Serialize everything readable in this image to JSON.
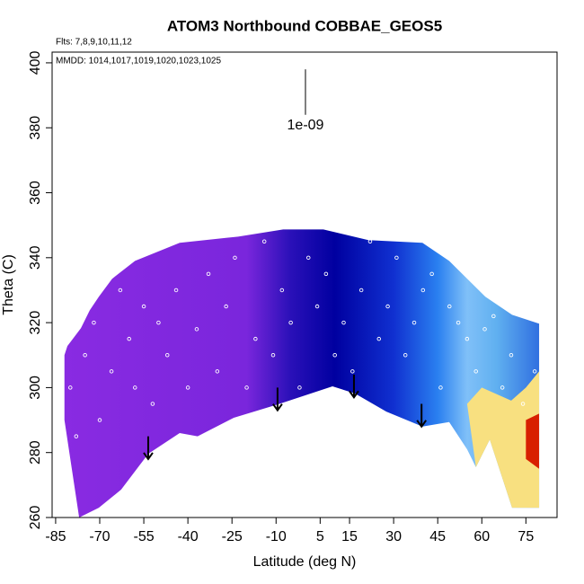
{
  "chart_data": {
    "type": "field",
    "title": "ATOM3 Northbound COBBAE_GEOS5",
    "subtitle": "Flts: 7,8,9,10,11,12",
    "annotation": "MMDD: 1014,1017,1019,1020,1023,1025",
    "x_label": "Latitude (deg N)",
    "y_label": "Theta (C)",
    "xlim": [
      -86.2,
      85.6
    ],
    "ylim": [
      260,
      403.3
    ],
    "xticks": [
      -85,
      -70,
      -55,
      -40,
      -25,
      -10,
      5,
      15,
      30,
      45,
      60,
      75
    ],
    "yticks": [
      260,
      280,
      300,
      320,
      340,
      360,
      380,
      400
    ],
    "field": {
      "top": {
        "lat": [
          -82,
          -81,
          -76.4,
          -73.4,
          -70.3,
          -65.8,
          -58,
          -42.8,
          -22.9,
          -7.6,
          6.1,
          21.4,
          39.8,
          48.9,
          61.2,
          70.3,
          79.5
        ],
        "theta": [
          310,
          312.8,
          318.3,
          323.8,
          328,
          333.5,
          339,
          344.6,
          346.5,
          348.7,
          348.7,
          345.4,
          344.6,
          339,
          328,
          322.4,
          319.7
        ]
      },
      "bottom": {
        "lat": [
          79.5,
          70.3,
          62.7,
          58,
          55,
          48.9,
          39.8,
          27.5,
          16.8,
          9.2,
          -9.2,
          -24.4,
          -36.7,
          -42.8,
          -53.5,
          -62.7,
          -70.3,
          -77,
          -82
        ],
        "theta": [
          263,
          263,
          284,
          275.5,
          281,
          289.4,
          288,
          292.6,
          298.2,
          300.4,
          294.9,
          290.7,
          285,
          286,
          279.6,
          268.6,
          263,
          260,
          290
        ]
      },
      "gradient": [
        {
          "lat": -85,
          "color": "#8a2be2"
        },
        {
          "lat": -20,
          "color": "#7a26dc"
        },
        {
          "lat": -5,
          "color": "#2a10b8"
        },
        {
          "lat": 10,
          "color": "#0000a0"
        },
        {
          "lat": 30,
          "color": "#1030d0"
        },
        {
          "lat": 45,
          "color": "#2a80f0"
        },
        {
          "lat": 55,
          "color": "#80c0f8"
        },
        {
          "lat": 65,
          "color": "#60b0f0"
        },
        {
          "lat": 79.5,
          "color": "#3070e0"
        }
      ]
    },
    "warm": {
      "lat": [
        55,
        60,
        65,
        70,
        75,
        79.5,
        79.5,
        70.3,
        62.7,
        58
      ],
      "theta": [
        295,
        300,
        298,
        296,
        300,
        305,
        263,
        263,
        284,
        275.5
      ],
      "color": "#f8e080"
    },
    "hot": {
      "lat": [
        75,
        79.5,
        79.5,
        75
      ],
      "theta": [
        290,
        292,
        275,
        278
      ],
      "color": "#d82000"
    },
    "arrows": {
      "lat": [
        -53.5,
        -9.5,
        16.5,
        39.5
      ],
      "theta_start": [
        285,
        300,
        304,
        295
      ],
      "theta_end": [
        278,
        293,
        297,
        288
      ]
    },
    "scale_bar": {
      "lat": 0,
      "theta": [
        398,
        384
      ],
      "label": "1e-09"
    },
    "points": {
      "lat": [
        -80,
        -78,
        -75,
        -72,
        -70,
        -66,
        -63,
        -60,
        -58,
        -55,
        -52,
        -50,
        -47,
        -44,
        -40,
        -37,
        -33,
        -30,
        -27,
        -24,
        -20,
        -17,
        -14,
        -11,
        -8,
        -5,
        -2,
        1,
        4,
        7,
        10,
        13,
        16,
        19,
        22,
        25,
        28,
        31,
        34,
        37,
        40,
        43,
        46,
        49,
        52,
        55,
        58,
        61,
        64,
        67,
        70,
        74,
        78
      ],
      "theta": [
        300,
        285,
        310,
        320,
        290,
        305,
        330,
        315,
        300,
        325,
        295,
        320,
        310,
        330,
        300,
        318,
        335,
        305,
        325,
        340,
        300,
        315,
        345,
        310,
        330,
        320,
        300,
        340,
        325,
        335,
        310,
        320,
        305,
        330,
        345,
        315,
        325,
        340,
        310,
        320,
        330,
        335,
        300,
        325,
        320,
        315,
        305,
        318,
        322,
        300,
        310,
        295,
        305
      ],
      "color": "#ffffff"
    }
  }
}
